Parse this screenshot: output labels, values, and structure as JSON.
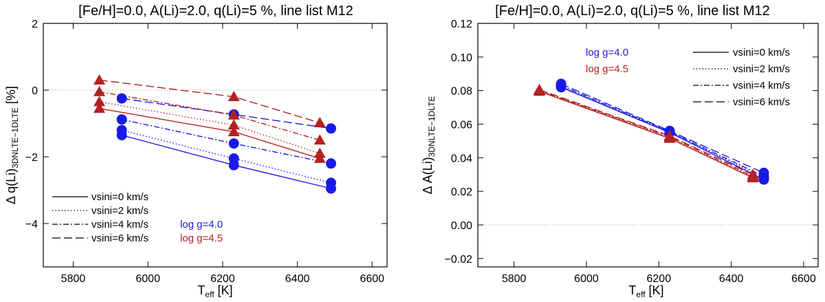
{
  "chart_data": [
    {
      "type": "line",
      "title": "[Fe/H]=0.0, A(Li)=2.0, q(Li)=5 %, line list M12",
      "xlabel": {
        "main": "T",
        "sub": "eff",
        "unit": " [K]"
      },
      "ylabel": {
        "main": "Δ q(Li)",
        "sub": "3DNLTE−1DLTE",
        "unit": " [%]"
      },
      "xlim": [
        5720,
        6640
      ],
      "ylim": [
        -5.3,
        2.0
      ],
      "xticks": [
        5800,
        6000,
        6200,
        6400,
        6600
      ],
      "yticks": [
        -4,
        -2,
        0,
        2
      ],
      "zero_line": 0,
      "groups": [
        {
          "name": "log g=4.0",
          "color": "#1a1ae6",
          "marker": "circle",
          "x": [
            5930,
            6230,
            6490
          ],
          "series": [
            {
              "name": "vsini=0 km/s",
              "dash": "solid",
              "values": [
                -1.35,
                -2.25,
                -2.95
              ]
            },
            {
              "name": "vsini=2 km/s",
              "dash": "dotted",
              "values": [
                -1.2,
                -2.05,
                -2.78
              ]
            },
            {
              "name": "vsini=4 km/s",
              "dash": "dashdot",
              "values": [
                -0.88,
                -1.6,
                -2.2
              ]
            },
            {
              "name": "vsini=6 km/s",
              "dash": "dashed",
              "values": [
                -0.25,
                -0.73,
                -1.15
              ]
            }
          ]
        },
        {
          "name": "log g=4.5",
          "color": "#b22222",
          "marker": "triangle",
          "x": [
            5870,
            6230,
            6460
          ],
          "series": [
            {
              "name": "vsini=0 km/s",
              "dash": "solid",
              "values": [
                -0.55,
                -1.25,
                -2.05
              ]
            },
            {
              "name": "vsini=2 km/s",
              "dash": "dotted",
              "values": [
                -0.35,
                -1.05,
                -1.9
              ]
            },
            {
              "name": "vsini=4 km/s",
              "dash": "dashdot",
              "values": [
                -0.05,
                -0.75,
                -1.5
              ]
            },
            {
              "name": "vsini=6 km/s",
              "dash": "dashed",
              "values": [
                0.3,
                -0.2,
                -0.98
              ]
            }
          ]
        }
      ],
      "legend": {
        "lines": [
          "vsini=0 km/s",
          "vsini=2 km/s",
          "vsini=4 km/s",
          "vsini=6 km/s"
        ],
        "groups": [
          "log g=4.0",
          "log g=4.5"
        ]
      }
    },
    {
      "type": "line",
      "title": "[Fe/H]=0.0, A(Li)=2.0, q(Li)=5 %, line list M12",
      "xlabel": {
        "main": "T",
        "sub": "eff",
        "unit": " [K]"
      },
      "ylabel": {
        "main": "Δ A(Li)",
        "sub": "3DNLTE−1DLTE",
        "unit": ""
      },
      "xlim": [
        5700,
        6640
      ],
      "ylim": [
        -0.025,
        0.12
      ],
      "xticks": [
        5800,
        6000,
        6200,
        6400,
        6600
      ],
      "yticks": [
        -0.02,
        0.0,
        0.02,
        0.04,
        0.06,
        0.08,
        0.1,
        0.12
      ],
      "ytick_labels": [
        "−0.02",
        "0.00",
        "0.02",
        "0.04",
        "0.06",
        "0.08",
        "0.10",
        "0.12"
      ],
      "zero_line": 0,
      "groups": [
        {
          "name": "log g=4.0",
          "color": "#1a1ae6",
          "marker": "circle",
          "x": [
            5930,
            6230,
            6490
          ],
          "series": [
            {
              "name": "vsini=0 km/s",
              "dash": "solid",
              "values": [
                0.082,
                0.055,
                0.027
              ]
            },
            {
              "name": "vsini=2 km/s",
              "dash": "dotted",
              "values": [
                0.0825,
                0.0555,
                0.028
              ]
            },
            {
              "name": "vsini=4 km/s",
              "dash": "dashdot",
              "values": [
                0.083,
                0.0555,
                0.029
              ]
            },
            {
              "name": "vsini=6 km/s",
              "dash": "dashed",
              "values": [
                0.084,
                0.056,
                0.031
              ]
            }
          ]
        },
        {
          "name": "log g=4.5",
          "color": "#b22222",
          "marker": "triangle",
          "x": [
            5870,
            6230,
            6460
          ],
          "series": [
            {
              "name": "vsini=0 km/s",
              "dash": "solid",
              "values": [
                0.0795,
                0.0515,
                0.028
              ]
            },
            {
              "name": "vsini=2 km/s",
              "dash": "dotted",
              "values": [
                0.08,
                0.052,
                0.0285
              ]
            },
            {
              "name": "vsini=4 km/s",
              "dash": "dashdot",
              "values": [
                0.08,
                0.0525,
                0.029
              ]
            },
            {
              "name": "vsini=6 km/s",
              "dash": "dashed",
              "values": [
                0.0805,
                0.053,
                0.03
              ]
            }
          ]
        }
      ],
      "legend": {
        "lines": [
          "vsini=0 km/s",
          "vsini=2 km/s",
          "vsini=4 km/s",
          "vsini=6 km/s"
        ],
        "groups": [
          "log g=4.0",
          "log g=4.5"
        ]
      }
    }
  ]
}
